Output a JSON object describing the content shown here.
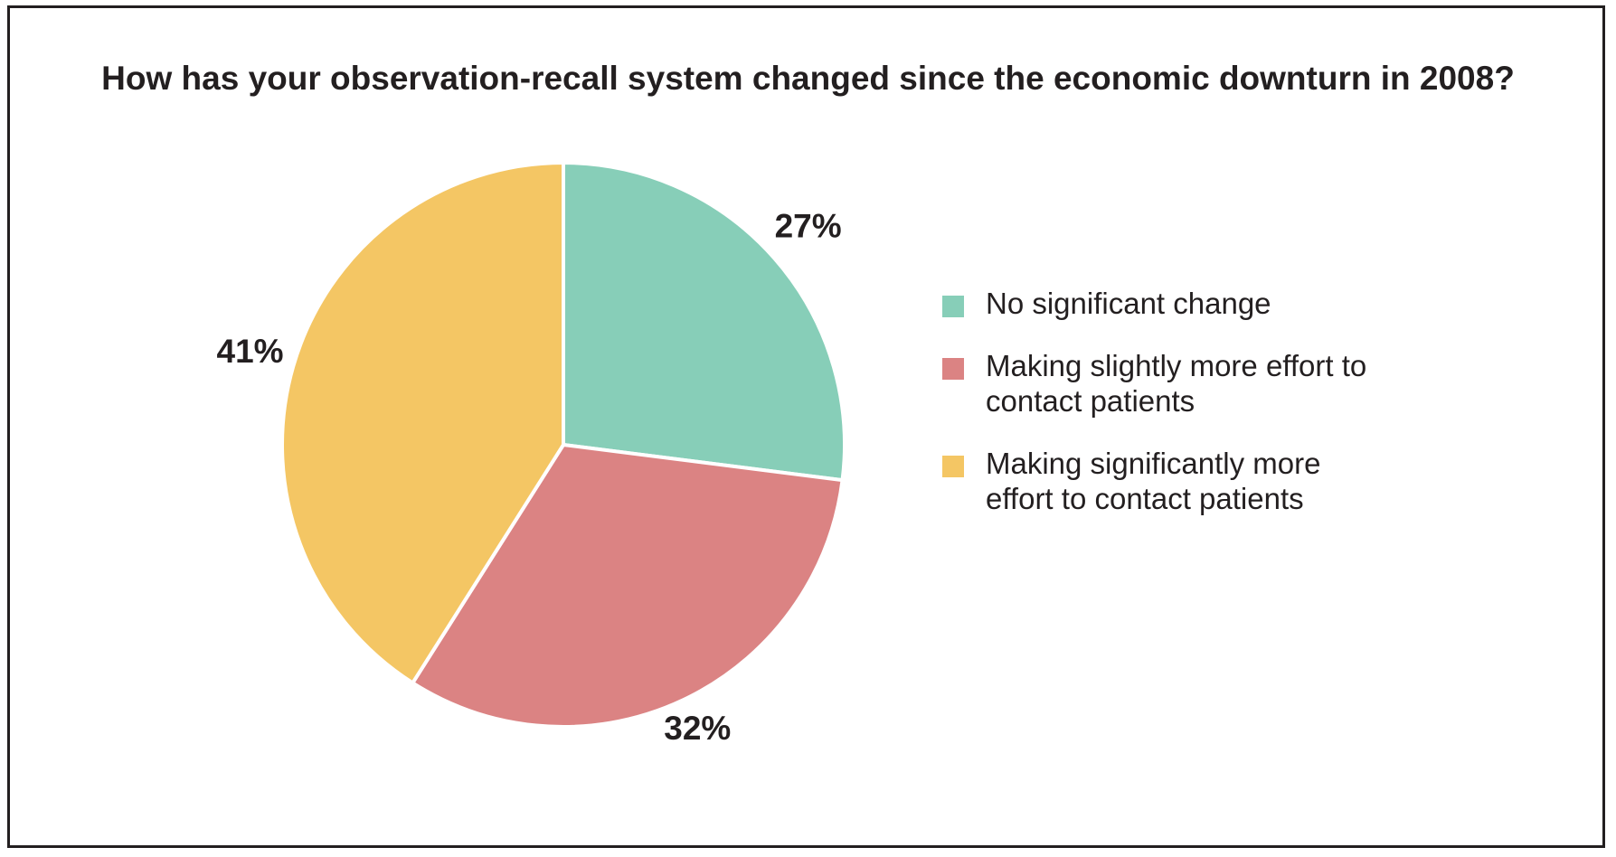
{
  "chart_data": {
    "type": "pie",
    "title": "How has your observation-recall system changed since the economic downturn in 2008?",
    "slices": [
      {
        "label": "No significant change",
        "value": 27,
        "display": "27%",
        "color": "#87ceb8"
      },
      {
        "label": "Making slightly more effort to contact patients",
        "value": 32,
        "display": "32%",
        "color": "#db8383"
      },
      {
        "label": "Making significantly more effort to contact patients",
        "value": 41,
        "display": "41%",
        "color": "#f4c664"
      }
    ],
    "legend_position": "right"
  },
  "legend": {
    "items": [
      {
        "lines": [
          "No significant change"
        ]
      },
      {
        "lines": [
          "Making slightly more effort to",
          "contact patients"
        ]
      },
      {
        "lines": [
          "Making significantly more",
          "effort to contact patients"
        ]
      }
    ]
  }
}
